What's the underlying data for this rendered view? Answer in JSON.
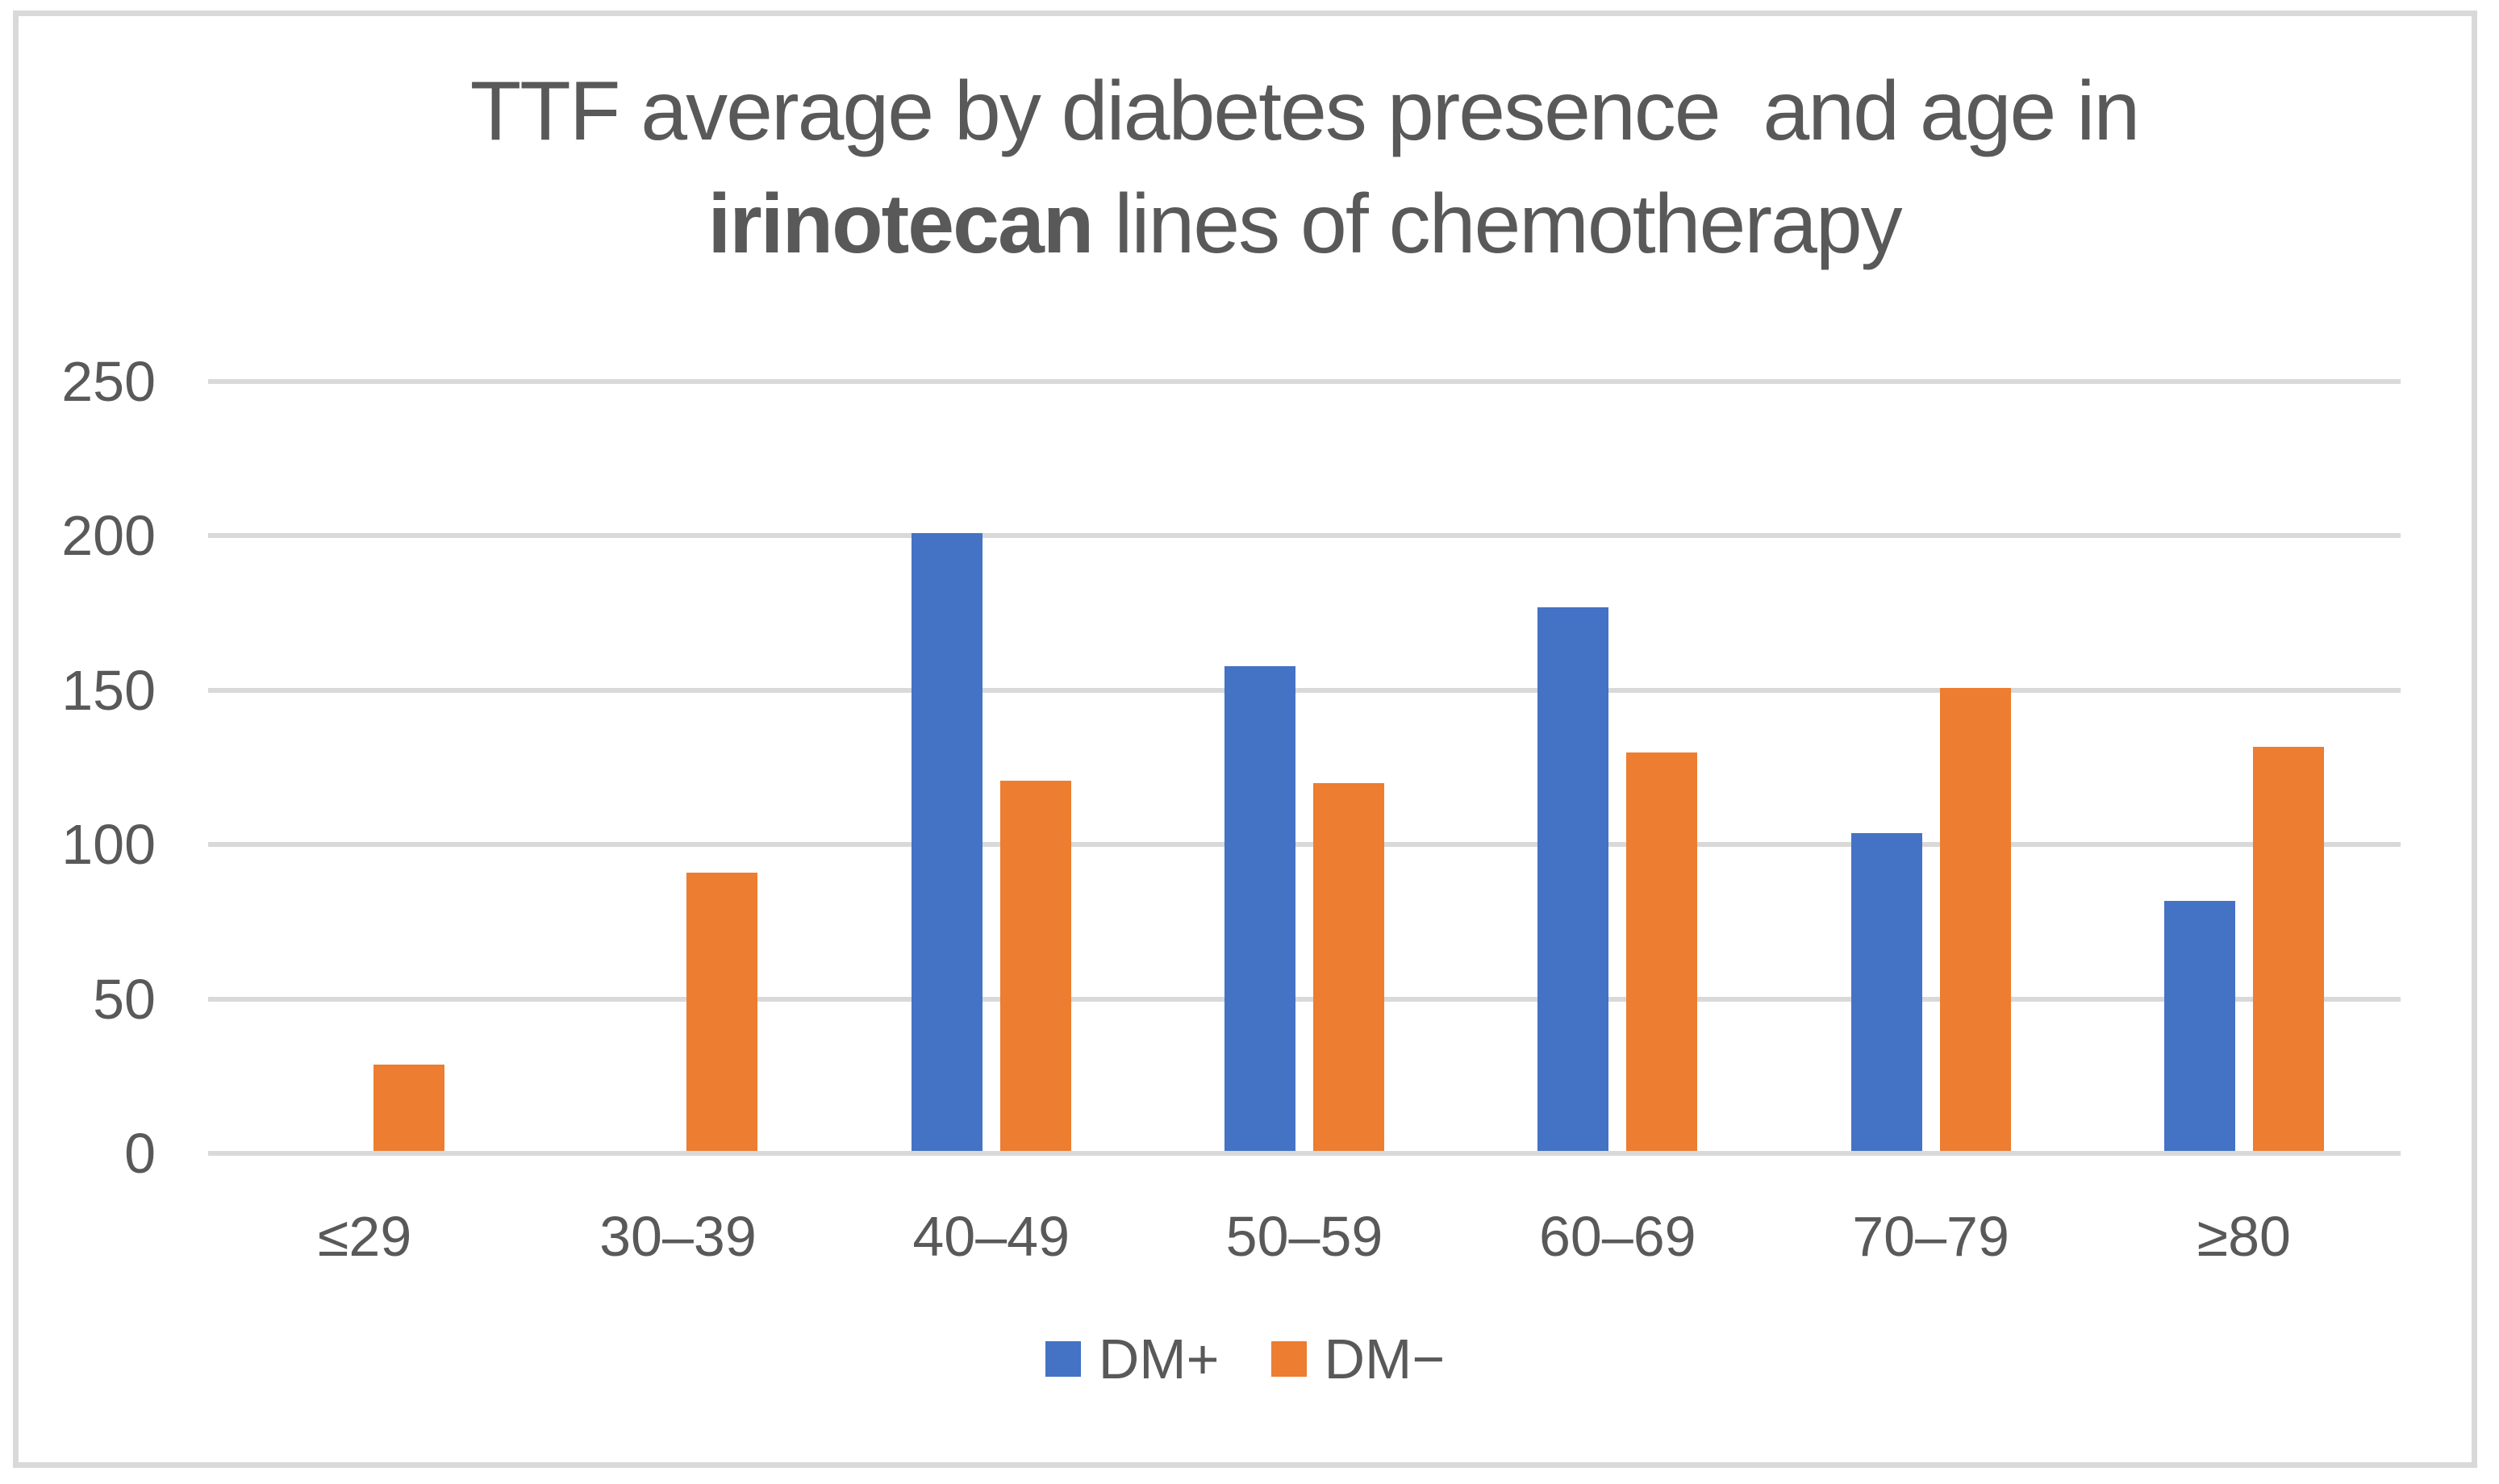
{
  "figure": {
    "background": "#FFFFFF",
    "border_color": "#D9D9D9"
  },
  "title": {
    "line1": "TTF average by diabetes presence  and age in",
    "line2_bold": "irinotecan",
    "line2_rest": " lines of chemotherapy",
    "color": "#595959"
  },
  "legend": {
    "items": [
      {
        "label": "DM+",
        "color": "#4472C4"
      },
      {
        "label": "DM−",
        "color": "#ED7D31"
      }
    ]
  },
  "axis": {
    "tick_label_color": "#595959",
    "gridline_color": "#D9D9D9"
  },
  "chart_data": {
    "type": "bar",
    "title": "TTF average by diabetes presence  and age in irinotecan lines of chemotherapy",
    "categories": [
      "≤29",
      "30–39",
      "40–49",
      "50–59",
      "60–69",
      "70–79",
      "≥80"
    ],
    "series": [
      {
        "name": "DM+",
        "color": "#4472C4",
        "values": [
          0,
          0,
          200,
          157,
          176,
          103,
          81
        ]
      },
      {
        "name": "DM−",
        "color": "#ED7D31",
        "values": [
          28,
          90,
          120,
          119,
          129,
          150,
          131
        ]
      }
    ],
    "xlabel": "",
    "ylabel": "",
    "ylim": [
      0,
      250
    ],
    "yticks": [
      0,
      50,
      100,
      150,
      200,
      250
    ],
    "grid": true,
    "legend_position": "bottom"
  }
}
